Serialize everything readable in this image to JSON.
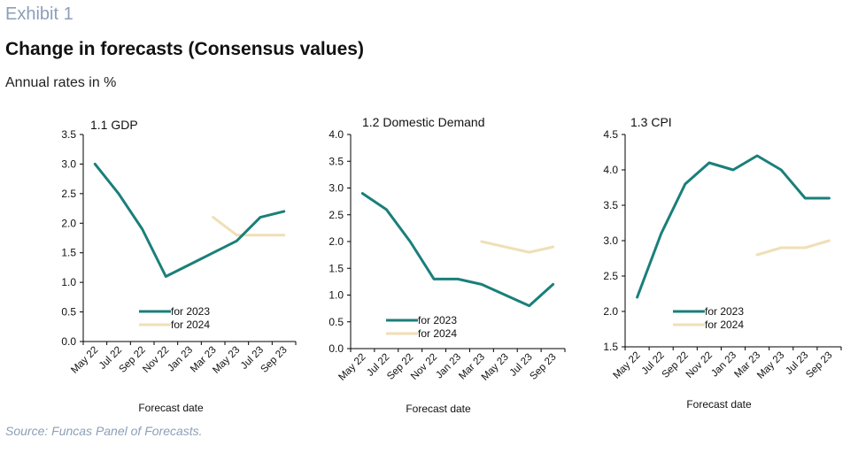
{
  "header": {
    "exhibit": "Exhibit 1",
    "title": "Change in forecasts (Consensus values)",
    "subtitle": "Annual rates in %"
  },
  "footer": {
    "source": "Source: Funcas Panel of Forecasts."
  },
  "colors": {
    "series_2023": "#1a7f7a",
    "series_2024": "#f0dfb6",
    "axis": "#000000"
  },
  "chart_data": [
    {
      "type": "line",
      "title": "1.1 GDP",
      "xlabel": "Forecast date",
      "ylabel": "",
      "ylim": [
        0,
        3.5
      ],
      "yticks": [
        "0.0",
        "0.5",
        "1.0",
        "1.5",
        "2.0",
        "2.5",
        "3.0",
        "3.5"
      ],
      "categories": [
        "May 22",
        "Jul 22",
        "Sep 22",
        "Nov 22",
        "Jan 23",
        "Mar 23",
        "May 23",
        "Jul 23",
        "Sep 23"
      ],
      "legend_position": "bottom-center",
      "grid": false,
      "series": [
        {
          "name": "for 2023",
          "values": [
            3.0,
            2.5,
            1.9,
            1.1,
            1.3,
            1.5,
            1.7,
            2.1,
            2.2
          ]
        },
        {
          "name": "for 2024",
          "values": [
            null,
            null,
            null,
            null,
            null,
            2.1,
            1.8,
            1.8,
            1.8
          ]
        }
      ]
    },
    {
      "type": "line",
      "title": "1.2 Domestic Demand",
      "xlabel": "Forecast date",
      "ylabel": "",
      "ylim": [
        0,
        4
      ],
      "yticks": [
        "0.0",
        "0.5",
        "1.0",
        "1.5",
        "2.0",
        "2.5",
        "3.0",
        "3.5",
        "4.0"
      ],
      "categories": [
        "May 22",
        "Jul 22",
        "Sep 22",
        "Nov 22",
        "Jan 23",
        "Mar 23",
        "May 23",
        "Jul 23",
        "Sep 23"
      ],
      "legend_position": "bottom-left",
      "grid": false,
      "series": [
        {
          "name": "for 2023",
          "values": [
            2.9,
            2.6,
            2.0,
            1.3,
            1.3,
            1.2,
            1.0,
            0.8,
            1.2
          ]
        },
        {
          "name": "for 2024",
          "values": [
            null,
            null,
            null,
            null,
            null,
            2.0,
            1.9,
            1.8,
            1.9
          ]
        }
      ]
    },
    {
      "type": "line",
      "title": "1.3 CPI",
      "xlabel": "Forecast date",
      "ylabel": "",
      "ylim": [
        1.5,
        4.5
      ],
      "yticks": [
        "1.5",
        "2.0",
        "2.5",
        "3.0",
        "3.5",
        "4.0",
        "4.5"
      ],
      "categories": [
        "May 22",
        "Jul 22",
        "Sep 22",
        "Nov 22",
        "Jan 23",
        "Mar 23",
        "May 23",
        "Jul 23",
        "Sep 23"
      ],
      "legend_position": "bottom-center",
      "grid": false,
      "series": [
        {
          "name": "for 2023",
          "values": [
            2.2,
            3.1,
            3.8,
            4.1,
            4.0,
            4.2,
            4.0,
            3.6,
            3.6
          ]
        },
        {
          "name": "for 2024",
          "values": [
            null,
            null,
            null,
            null,
            null,
            2.8,
            2.9,
            2.9,
            3.0
          ]
        }
      ]
    }
  ]
}
